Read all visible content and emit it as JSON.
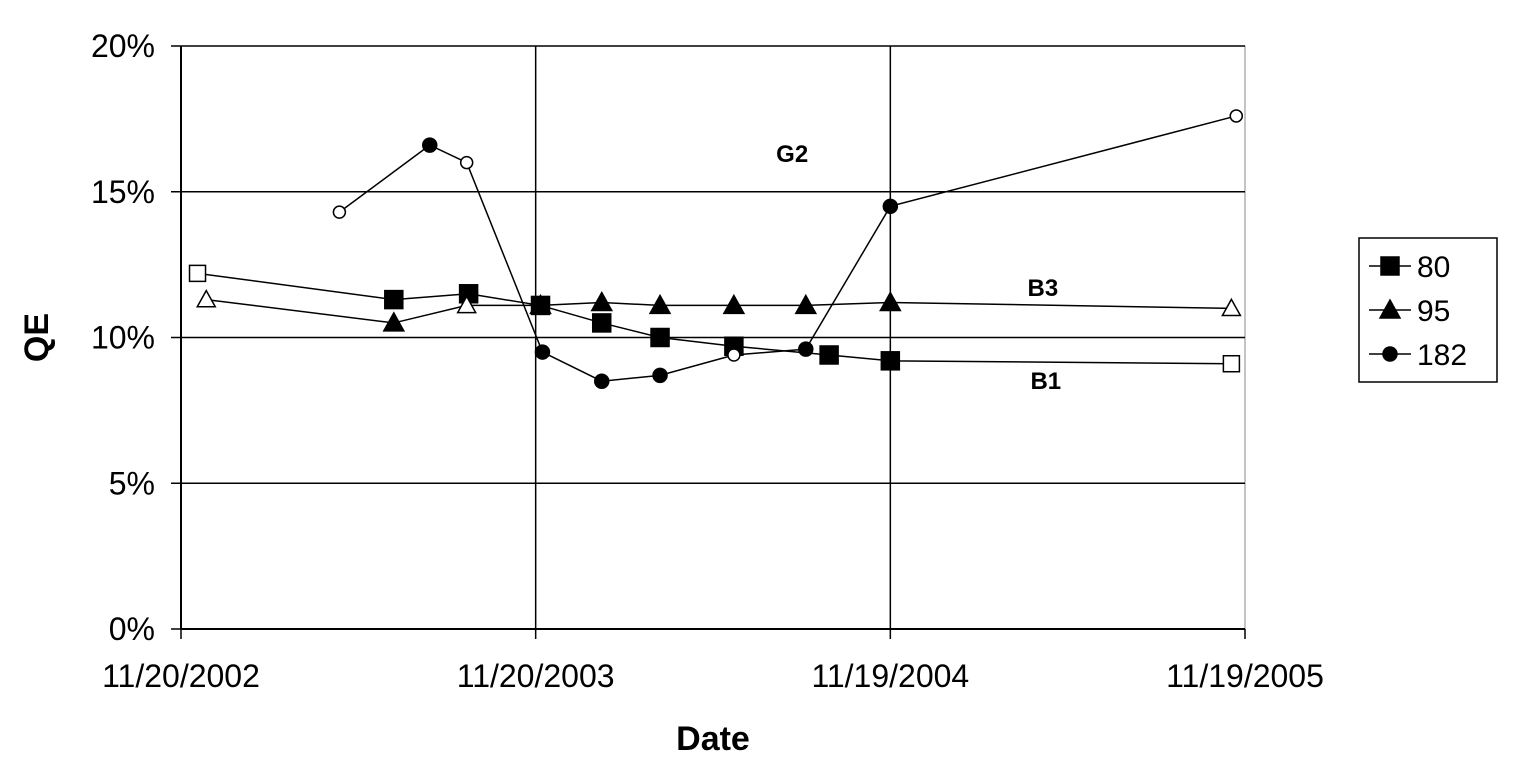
{
  "chart_data": {
    "type": "line",
    "xlabel": "Date",
    "ylabel": "QE",
    "x_axis": {
      "min": "11/20/2002",
      "max": "11/19/2005",
      "ticks": [
        "11/20/2002",
        "11/20/2003",
        "11/19/2004",
        "11/19/2005"
      ]
    },
    "y_axis": {
      "min": 0,
      "max": 20,
      "unit": "%",
      "ticks": [
        0,
        5,
        10,
        15,
        20
      ],
      "tick_labels": [
        "0%",
        "5%",
        "10%",
        "15%",
        "20%"
      ]
    },
    "grid": {
      "horizontal": true,
      "vertical": true
    },
    "legend": {
      "position": "right",
      "entries": [
        "80",
        "95",
        "182"
      ]
    },
    "series": [
      {
        "name": "80",
        "marker": "square",
        "points": [
          {
            "date": "2002-12-07",
            "y": 12.2,
            "filled": false
          },
          {
            "date": "2003-06-27",
            "y": 11.3,
            "filled": true
          },
          {
            "date": "2003-09-12",
            "y": 11.5,
            "filled": true
          },
          {
            "date": "2003-11-25",
            "y": 11.1,
            "filled": true
          },
          {
            "date": "2004-01-27",
            "y": 10.5,
            "filled": true
          },
          {
            "date": "2004-03-27",
            "y": 10.0,
            "filled": true
          },
          {
            "date": "2004-06-11",
            "y": 9.7,
            "filled": true
          },
          {
            "date": "2004-09-17",
            "y": 9.4,
            "filled": true
          },
          {
            "date": "2004-11-19",
            "y": 9.2,
            "filled": true
          },
          {
            "date": "2005-11-05",
            "y": 9.1,
            "filled": false
          }
        ]
      },
      {
        "name": "95",
        "marker": "triangle",
        "points": [
          {
            "date": "2002-12-16",
            "y": 11.3,
            "filled": false
          },
          {
            "date": "2003-06-27",
            "y": 10.5,
            "filled": true
          },
          {
            "date": "2003-09-10",
            "y": 11.1,
            "filled": false
          },
          {
            "date": "2003-11-25",
            "y": 11.1,
            "filled": true
          },
          {
            "date": "2004-01-27",
            "y": 11.2,
            "filled": true
          },
          {
            "date": "2004-03-27",
            "y": 11.1,
            "filled": true
          },
          {
            "date": "2004-06-11",
            "y": 11.1,
            "filled": true
          },
          {
            "date": "2004-08-24",
            "y": 11.1,
            "filled": true
          },
          {
            "date": "2004-11-19",
            "y": 11.2,
            "filled": true
          },
          {
            "date": "2005-11-05",
            "y": 11.0,
            "filled": false
          }
        ]
      },
      {
        "name": "182",
        "marker": "circle",
        "points": [
          {
            "date": "2003-05-02",
            "y": 14.3,
            "filled": false
          },
          {
            "date": "2003-08-03",
            "y": 16.6,
            "filled": true
          },
          {
            "date": "2003-09-10",
            "y": 16.0,
            "filled": false
          },
          {
            "date": "2003-11-27",
            "y": 9.5,
            "filled": true
          },
          {
            "date": "2004-01-27",
            "y": 8.5,
            "filled": true
          },
          {
            "date": "2004-03-27",
            "y": 8.7,
            "filled": true
          },
          {
            "date": "2004-06-11",
            "y": 9.4,
            "filled": false
          },
          {
            "date": "2004-08-24",
            "y": 9.6,
            "filled": true
          },
          {
            "date": "2004-11-19",
            "y": 14.5,
            "filled": true
          },
          {
            "date": "2005-11-10",
            "y": 17.6,
            "filled": false
          }
        ]
      }
    ],
    "annotations": [
      {
        "text": "G2",
        "date": "2004-08-10",
        "y": 16.3
      },
      {
        "text": "B3",
        "date": "2005-04-25",
        "y": 11.7
      },
      {
        "text": "B1",
        "date": "2005-04-28",
        "y": 8.5
      }
    ]
  }
}
